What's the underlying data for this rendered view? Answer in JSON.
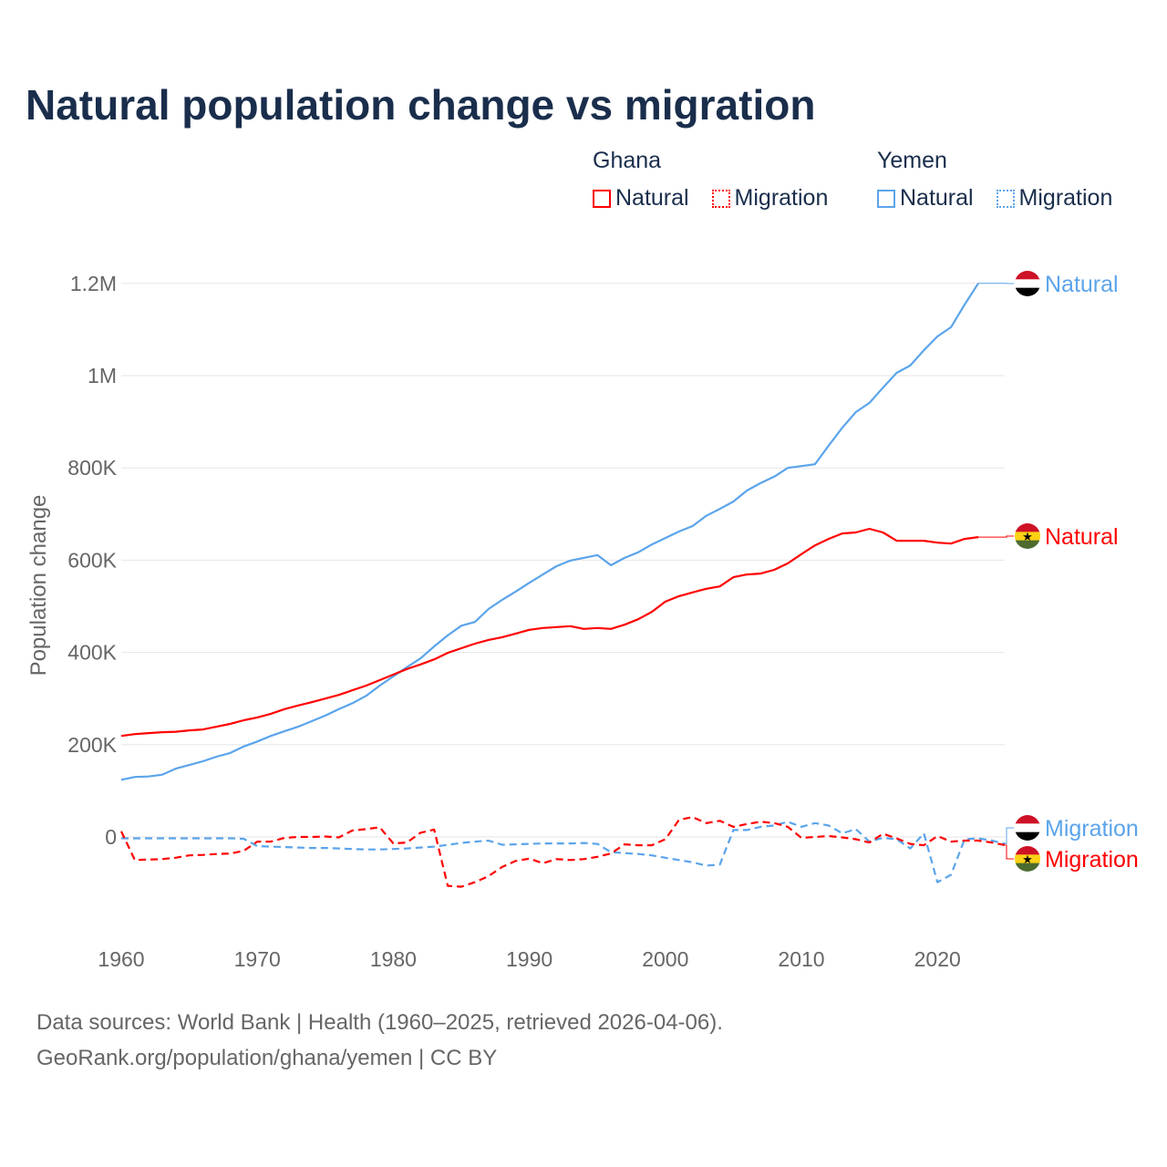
{
  "title": "Natural population change vs migration",
  "legend": {
    "groups": [
      {
        "name": "Ghana",
        "items": [
          {
            "label": "Natural",
            "style": "solid"
          },
          {
            "label": "Migration",
            "style": "dotted"
          }
        ],
        "color": "#ff0000"
      },
      {
        "name": "Yemen",
        "items": [
          {
            "label": "Natural",
            "style": "solid"
          },
          {
            "label": "Migration",
            "style": "dotted"
          }
        ],
        "color": "#5ba4eb"
      }
    ]
  },
  "footer": {
    "line1": "Data sources: World Bank | Health (1960–2025, retrieved 2026-04-06).",
    "line2": "GeoRank.org/population/ghana/yemen | CC BY"
  },
  "chart_data": {
    "type": "line",
    "title": "Natural population change vs migration",
    "xlabel": "",
    "ylabel": "Population change",
    "xlim": [
      1960,
      2025
    ],
    "ylim": [
      -200000,
      1200000
    ],
    "x_ticks": [
      "1960",
      "1970",
      "1980",
      "1990",
      "2000",
      "2010",
      "2020"
    ],
    "y_ticks": [
      {
        "v": 0,
        "label": "0"
      },
      {
        "v": 200000,
        "label": "200K"
      },
      {
        "v": 400000,
        "label": "400K"
      },
      {
        "v": 600000,
        "label": "600K"
      },
      {
        "v": 800000,
        "label": "800K"
      },
      {
        "v": 1000000,
        "label": "1M"
      },
      {
        "v": 1200000,
        "label": "1.2M"
      }
    ],
    "grid": true,
    "series": [
      {
        "name": "Yemen Natural",
        "end_label": "Natural",
        "country": "Yemen",
        "color": "#5ba4eb",
        "dash": false,
        "start": 1960,
        "values_k": [
          124,
          130,
          131,
          135,
          148,
          156,
          164,
          174,
          182,
          196,
          207,
          219,
          229,
          239,
          251,
          263,
          277,
          290,
          306,
          328,
          348,
          368,
          387,
          413,
          437,
          458,
          466,
          494,
          514,
          532,
          551,
          569,
          587,
          599,
          605,
          611,
          589,
          605,
          617,
          634,
          648,
          662,
          674,
          696,
          711,
          727,
          751,
          767,
          781,
          800,
          804,
          808,
          848,
          887,
          921,
          941,
          974,
          1006,
          1022,
          1055,
          1085,
          1105,
          1154,
          1200
        ]
      },
      {
        "name": "Ghana Natural",
        "end_label": "Natural",
        "country": "Ghana",
        "color": "#ff0000",
        "dash": false,
        "start": 1960,
        "values_k": [
          219,
          223,
          225,
          227,
          228,
          231,
          233,
          239,
          245,
          253,
          259,
          267,
          277,
          285,
          292,
          300,
          308,
          318,
          328,
          340,
          352,
          364,
          374,
          385,
          399,
          409,
          419,
          427,
          433,
          441,
          449,
          453,
          455,
          457,
          451,
          453,
          451,
          460,
          472,
          488,
          510,
          522,
          530,
          538,
          543,
          563,
          569,
          571,
          579,
          593,
          613,
          632,
          646,
          658,
          660,
          668,
          660,
          642,
          642,
          642,
          638,
          636,
          646,
          650
        ]
      },
      {
        "name": "Yemen Migration",
        "end_label": "Migration",
        "country": "Yemen",
        "color": "#5ba4eb",
        "dash": true,
        "start": 1960,
        "values_k": [
          -3,
          -3,
          -3,
          -3,
          -3,
          -3,
          -3,
          -3,
          -3,
          -4,
          -20,
          -21,
          -22,
          -23,
          -24,
          -24,
          -25,
          -26,
          -27,
          -27,
          -26,
          -25,
          -23,
          -21,
          -17,
          -13,
          -10,
          -8,
          -17,
          -16,
          -15,
          -14,
          -14,
          -14,
          -13,
          -15,
          -33,
          -35,
          -37,
          -40,
          -45,
          -50,
          -55,
          -62,
          -60,
          15,
          15,
          22,
          25,
          33,
          22,
          30,
          25,
          8,
          17,
          -10,
          -2,
          -5,
          -25,
          8,
          -98,
          -82,
          -5,
          -3,
          -8,
          -15
        ]
      },
      {
        "name": "Ghana Migration",
        "end_label": "Migration",
        "country": "Ghana",
        "color": "#ff0000",
        "dash": true,
        "start": 1960,
        "values_k": [
          12,
          -50,
          -49,
          -48,
          -45,
          -40,
          -39,
          -37,
          -36,
          -30,
          -10,
          -10,
          -2,
          0,
          0,
          1,
          -1,
          14,
          17,
          21,
          -14,
          -12,
          9,
          16,
          -106,
          -108,
          -98,
          -85,
          -65,
          -52,
          -47,
          -57,
          -48,
          -50,
          -48,
          -43,
          -36,
          -16,
          -18,
          -18,
          -5,
          37,
          43,
          30,
          35,
          22,
          28,
          33,
          30,
          22,
          -2,
          0,
          2,
          -1,
          -5,
          -12,
          7,
          -3,
          -15,
          -18,
          2,
          -10,
          -8,
          -8,
          -12,
          -18
        ]
      }
    ]
  }
}
